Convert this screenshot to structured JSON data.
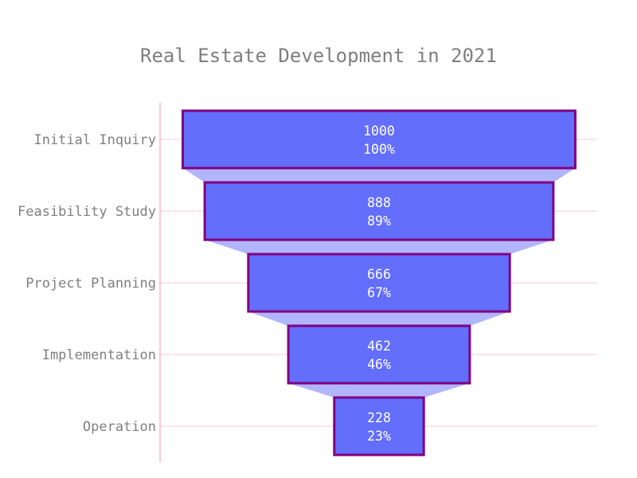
{
  "chart_data": {
    "type": "funnel",
    "title": "Real Estate Development in 2021",
    "categories": [
      "Initial Inquiry",
      "Feasibility Study",
      "Project Planning",
      "Implementation",
      "Operation"
    ],
    "values": [
      1000,
      888,
      666,
      462,
      228
    ],
    "percent_labels": [
      "100%",
      "89%",
      "67%",
      "46%",
      "23%"
    ],
    "xlabel": "",
    "ylabel": "",
    "grid": true,
    "colors": {
      "bar_fill": "#636efa",
      "bar_edge": "#800080",
      "connector": "#b1b5fc",
      "gridline": "#fadbe6",
      "axis_line": "#ffb6c1",
      "text": "#7f7f7f",
      "label": "#ffffff"
    }
  }
}
